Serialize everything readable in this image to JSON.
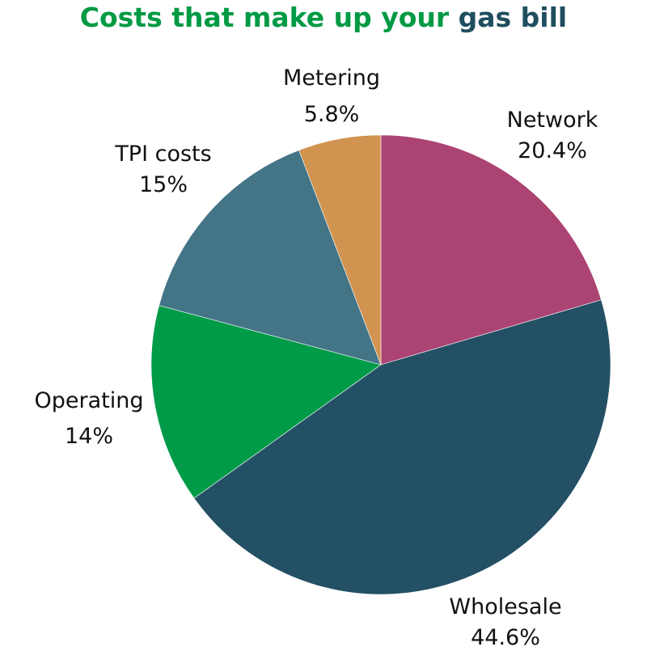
{
  "chart_data": {
    "type": "pie",
    "title_part1": "Costs that make up your ",
    "title_part2": "gas bill",
    "title_color_1": "#009a44",
    "title_color_2": "#1f4e5f",
    "slices": [
      {
        "label": "Network",
        "value": 20.4,
        "value_text": "20.4%",
        "color": "#ab4373"
      },
      {
        "label": "Wholesale",
        "value": 44.6,
        "value_text": "44.6%",
        "color": "#235064"
      },
      {
        "label": "Operating",
        "value": 14,
        "value_text": "14%",
        "color": "#009b49"
      },
      {
        "label": "TPI costs",
        "value": 15,
        "value_text": "15%",
        "color": "#437587"
      },
      {
        "label": "Metering",
        "value": 5.8,
        "value_text": "5.8%",
        "color": "#d19350"
      }
    ]
  }
}
